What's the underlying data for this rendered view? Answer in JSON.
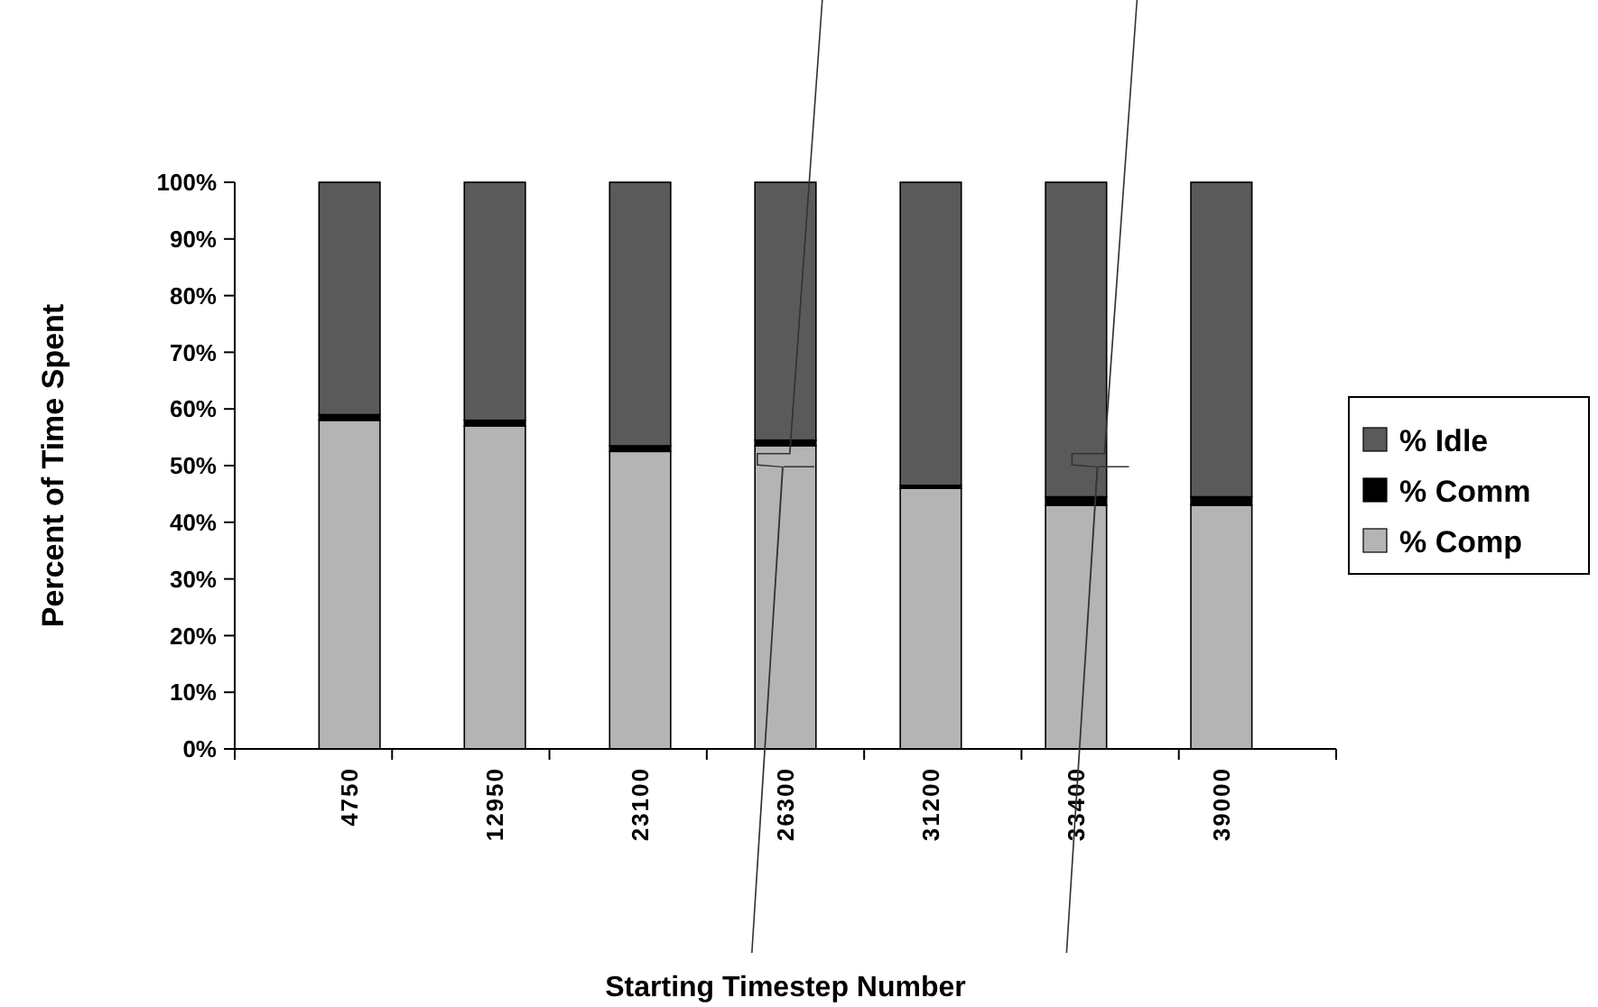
{
  "chart_data": {
    "type": "bar",
    "stacked": true,
    "xlabel": "Starting Timestep Number",
    "ylabel": "Percent of Time Spent",
    "categories": [
      "4750",
      "12950",
      "23100",
      "26300",
      "31200",
      "33400",
      "39000"
    ],
    "series": [
      {
        "name": "% Comp",
        "color": "#b4b4b4",
        "values": [
          58,
          57,
          52.5,
          53.5,
          46,
          43,
          43
        ]
      },
      {
        "name": "% Comm",
        "color": "#000000",
        "values": [
          1,
          1,
          1,
          1,
          0.5,
          1.5,
          1.5
        ]
      },
      {
        "name": "% Idle",
        "color": "#5a5a5a",
        "values": [
          41,
          42,
          46.5,
          45.5,
          53.5,
          55.5,
          55.5
        ]
      }
    ],
    "ylim": [
      0,
      100
    ],
    "yticks": [
      {
        "value": 0,
        "label": "0%"
      },
      {
        "value": 10,
        "label": "10%"
      },
      {
        "value": 20,
        "label": "20%"
      },
      {
        "value": 30,
        "label": "30%"
      },
      {
        "value": 40,
        "label": "40%"
      },
      {
        "value": 50,
        "label": "50%"
      },
      {
        "value": 60,
        "label": "60%"
      },
      {
        "value": 70,
        "label": "70%"
      },
      {
        "value": 80,
        "label": "80%"
      },
      {
        "value": 90,
        "label": "90%"
      },
      {
        "value": 100,
        "label": "100%"
      }
    ],
    "grid": false,
    "legend": "right"
  }
}
